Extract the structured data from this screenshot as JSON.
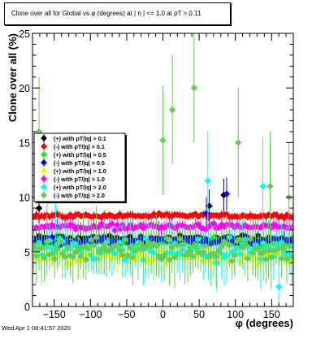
{
  "chart_data": {
    "type": "scatter",
    "title": "Clone  over all for Global vs φ (degrees) at | η | <= 1.0 at pT > 0.11",
    "xlabel": "φ (degrees)",
    "ylabel": "Clone  over all (%)",
    "xlim": [
      -180,
      180
    ],
    "ylim": [
      0,
      25
    ],
    "x_ticks": [
      -150,
      -100,
      -50,
      0,
      50,
      100,
      150
    ],
    "y_ticks": [
      0,
      5,
      10,
      15,
      20,
      25
    ],
    "grid": false,
    "legend_position": "left",
    "series": [
      {
        "name": "(+) with pT/|q| > 0.1",
        "color": "#000000",
        "base": 6.2,
        "spread": 0.5,
        "err": 0.6,
        "outliers": [
          [
            64,
            9.2
          ],
          [
            84,
            10.2
          ],
          [
            -171,
            9.0
          ]
        ]
      },
      {
        "name": "(-) with pT/|q| > 0.1",
        "color": "#ff0000",
        "base": 8.3,
        "spread": 0.25,
        "err": 0.3,
        "outliers": []
      },
      {
        "name": "(+) with pT/|q| > 0.5",
        "color": "#00ff00",
        "base": 5.8,
        "spread": 0.6,
        "err": 0.7,
        "outliers": []
      },
      {
        "name": "(-) with pT/|q| > 0.5",
        "color": "#0000ff",
        "base": 6.0,
        "spread": 0.5,
        "err": 0.6,
        "outliers": [
          [
            88,
            10.3
          ],
          [
            60,
            8.5
          ]
        ]
      },
      {
        "name": "(+) with pT/|q| > 1.0",
        "color": "#ffff00",
        "base": 4.6,
        "spread": 1.0,
        "err": 1.0,
        "outliers": []
      },
      {
        "name": "(-) with pT/|q| > 1.0",
        "color": "#ff00ff",
        "base": 7.3,
        "spread": 0.4,
        "err": 0.5,
        "outliers": []
      },
      {
        "name": "(+) with pT/|q| > 2.0",
        "color": "#00ffff",
        "base": 5.0,
        "spread": 1.6,
        "err": 1.8,
        "outliers": [
          [
            -148,
            10.5
          ],
          [
            62,
            11.5
          ],
          [
            138,
            11.0
          ],
          [
            160,
            1.8
          ]
        ]
      },
      {
        "name": "(-) with pT/|q| > 2.0",
        "color": "#66cc55",
        "base": 5.2,
        "spread": 1.6,
        "err": 2.0,
        "outliers": [
          [
            43,
            20.0
          ],
          [
            13,
            18.0
          ],
          [
            -171,
            16.0
          ],
          [
            104,
            15.0
          ],
          [
            -160,
            10.0
          ],
          [
            174,
            10.0
          ],
          [
            148,
            11.0
          ],
          [
            0,
            15.2
          ]
        ]
      }
    ],
    "bin_width": 3.6
  },
  "datestamp": "Wed Apr  1 08:41:57 2020"
}
